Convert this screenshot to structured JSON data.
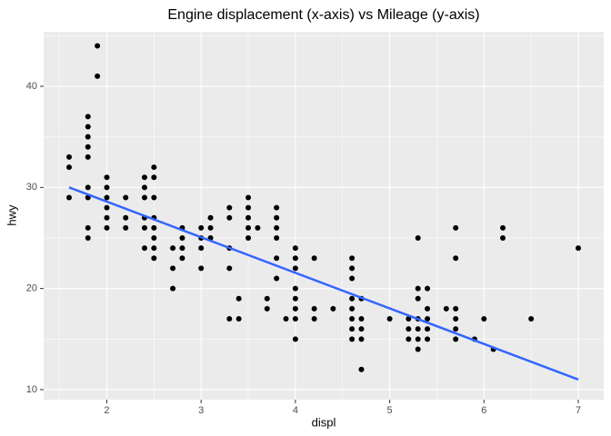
{
  "chart_data": {
    "type": "scatter",
    "title": "Engine displacement (x-axis) vs Mileage (y-axis)",
    "x_label": "displ",
    "y_label": "hwy",
    "xlim": [
      1.33,
      7.27
    ],
    "ylim": [
      9.01,
      45.39
    ],
    "xticks": [
      2,
      3,
      4,
      5,
      6,
      7
    ],
    "yticks": [
      10,
      20,
      30,
      40
    ],
    "grid": true,
    "series": [
      {
        "type": "scatter",
        "color": "#000000",
        "x": [
          1.6,
          1.6,
          1.6,
          1.8,
          1.8,
          1.8,
          1.8,
          1.8,
          1.8,
          1.8,
          1.8,
          1.8,
          1.9,
          1.9,
          2.0,
          2.0,
          2.0,
          2.0,
          2.0,
          2.0,
          2.2,
          2.2,
          2.2,
          2.4,
          2.4,
          2.4,
          2.4,
          2.4,
          2.4,
          2.5,
          2.5,
          2.5,
          2.5,
          2.5,
          2.5,
          2.5,
          2.5,
          2.7,
          2.7,
          2.7,
          2.8,
          2.8,
          2.8,
          2.8,
          3.0,
          3.0,
          3.0,
          3.0,
          3.1,
          3.1,
          3.1,
          3.3,
          3.3,
          3.3,
          3.3,
          3.3,
          3.4,
          3.4,
          3.5,
          3.5,
          3.5,
          3.5,
          3.5,
          3.6,
          3.7,
          3.7,
          3.8,
          3.8,
          3.8,
          3.8,
          3.8,
          3.8,
          3.9,
          4.0,
          4.0,
          4.0,
          4.0,
          4.0,
          4.0,
          4.0,
          4.0,
          4.2,
          4.2,
          4.2,
          4.4,
          4.6,
          4.6,
          4.6,
          4.6,
          4.6,
          4.6,
          4.6,
          4.6,
          4.7,
          4.7,
          4.7,
          4.7,
          4.7,
          5.0,
          5.2,
          5.2,
          5.2,
          5.3,
          5.3,
          5.3,
          5.3,
          5.3,
          5.3,
          5.3,
          5.4,
          5.4,
          5.4,
          5.4,
          5.4,
          5.6,
          5.7,
          5.7,
          5.7,
          5.7,
          5.7,
          5.7,
          5.9,
          6.0,
          6.1,
          6.2,
          6.2,
          6.5,
          7.0
        ],
        "values": [
          33,
          32,
          29,
          37,
          36,
          35,
          34,
          33,
          30,
          29,
          26,
          25,
          44,
          41,
          31,
          30,
          29,
          28,
          27,
          26,
          29,
          27,
          26,
          31,
          30,
          29,
          27,
          26,
          24,
          32,
          31,
          29,
          27,
          26,
          25,
          24,
          23,
          24,
          22,
          20,
          26,
          25,
          24,
          23,
          26,
          25,
          24,
          22,
          27,
          26,
          25,
          28,
          27,
          24,
          22,
          17,
          19,
          17,
          29,
          28,
          27,
          26,
          25,
          26,
          19,
          18,
          28,
          27,
          26,
          25,
          23,
          21,
          17,
          24,
          23,
          22,
          20,
          19,
          18,
          17,
          15,
          23,
          18,
          17,
          18,
          23,
          22,
          21,
          19,
          18,
          17,
          16,
          15,
          19,
          17,
          16,
          15,
          12,
          17,
          17,
          16,
          15,
          25,
          20,
          19,
          17,
          16,
          15,
          14,
          20,
          18,
          17,
          16,
          15,
          18,
          26,
          23,
          18,
          17,
          16,
          15,
          15,
          17,
          14,
          26,
          25,
          17,
          24
        ]
      },
      {
        "type": "line",
        "color": "#3366ff",
        "x": [
          1.6,
          7.0
        ],
        "values": [
          30.0,
          11.0
        ]
      }
    ]
  }
}
